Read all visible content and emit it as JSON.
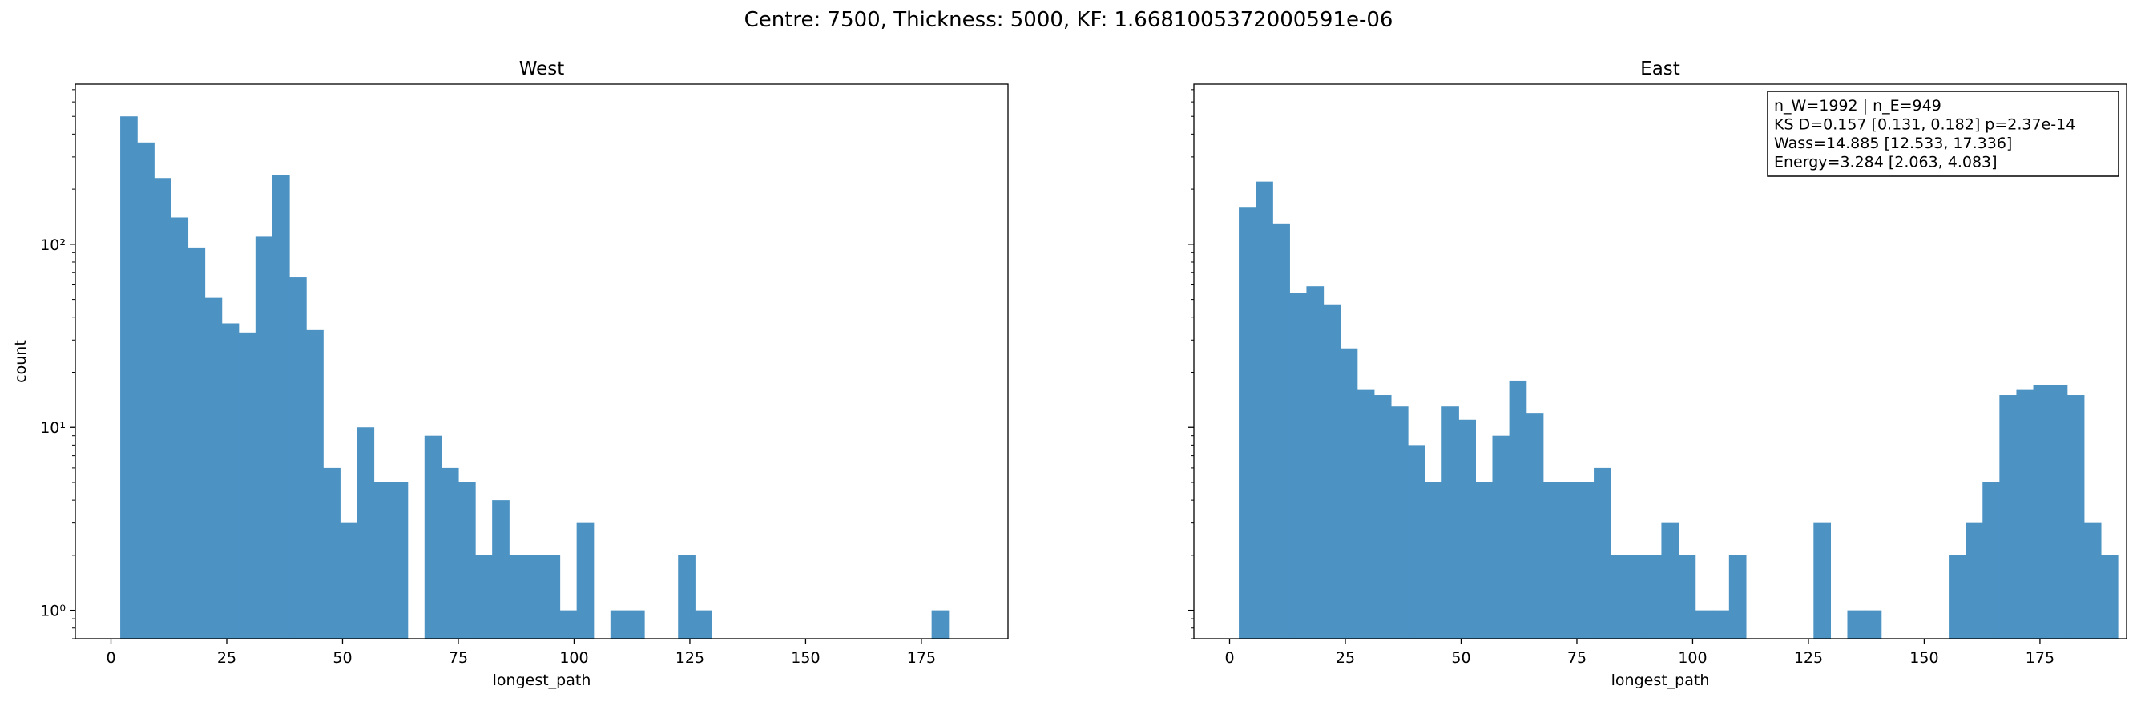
{
  "suptitle": "Centre: 7500, Thickness: 5000, KF: 1.6681005372000591e-06",
  "chart_data": [
    {
      "type": "bar",
      "title": "West",
      "xlabel": "longest_path",
      "ylabel": "count",
      "yscale": "log",
      "xlim": [
        -7.7,
        193.7
      ],
      "ylim": [
        0.7,
        750
      ],
      "xticks": [
        0,
        25,
        50,
        75,
        100,
        125,
        150,
        175
      ],
      "yticks": [
        {
          "value": 1,
          "label": "10⁰"
        },
        {
          "value": 10,
          "label": "10¹"
        },
        {
          "value": 100,
          "label": "10²"
        }
      ],
      "bin_start": 2,
      "bin_width": 3.65,
      "bar_color": "#4c93c4",
      "values": [
        500,
        360,
        230,
        140,
        96,
        51,
        37,
        33,
        110,
        240,
        66,
        34,
        6,
        3,
        10,
        5,
        5,
        0,
        9,
        6,
        5,
        2,
        4,
        2,
        2,
        2,
        1,
        3,
        0,
        1,
        1,
        0,
        0,
        2,
        1,
        0,
        0,
        0,
        0,
        0,
        0,
        0,
        0,
        0,
        0,
        0,
        0,
        0,
        1,
        0
      ]
    },
    {
      "type": "bar",
      "title": "East",
      "xlabel": "longest_path",
      "ylabel": "",
      "yscale": "log",
      "xlim": [
        -7.7,
        193.7
      ],
      "ylim": [
        0.7,
        750
      ],
      "xticks": [
        0,
        25,
        50,
        75,
        100,
        125,
        150,
        175
      ],
      "yticks": [
        {
          "value": 1,
          "label": ""
        },
        {
          "value": 10,
          "label": ""
        },
        {
          "value": 100,
          "label": ""
        }
      ],
      "bin_start": 2,
      "bin_width": 3.65,
      "bar_color": "#4c93c4",
      "values": [
        160,
        220,
        130,
        54,
        59,
        47,
        27,
        16,
        15,
        13,
        8,
        5,
        13,
        11,
        5,
        9,
        18,
        12,
        5,
        5,
        5,
        6,
        2,
        2,
        2,
        3,
        2,
        1,
        1,
        2,
        0,
        0,
        0,
        0,
        3,
        0,
        1,
        1,
        0,
        0,
        0,
        0,
        2,
        3,
        5,
        15,
        16,
        17,
        17,
        15,
        3,
        2
      ],
      "annotation": [
        "n_W=1992 | n_E=949",
        "KS D=0.157 [0.131, 0.182]  p=2.37e-14",
        "Wass=14.885 [12.533, 17.336]",
        "Energy=3.284 [2.063, 4.083]"
      ]
    }
  ]
}
